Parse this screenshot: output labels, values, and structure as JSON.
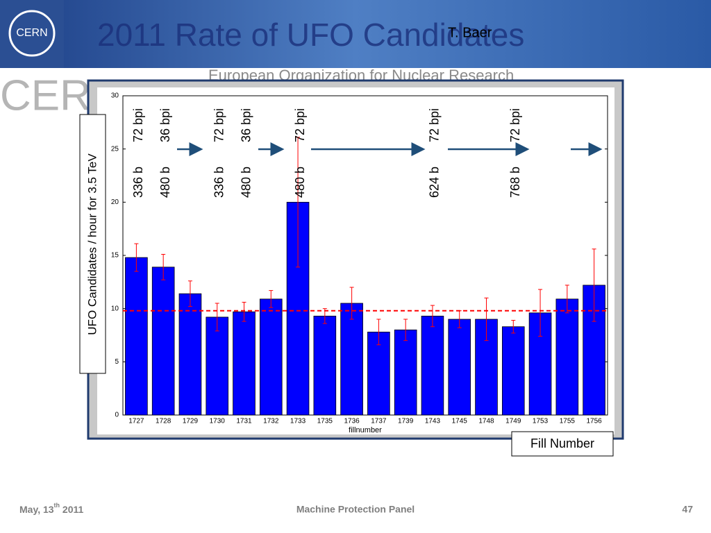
{
  "slide": {
    "title": "2011 Rate of UFO Candidates",
    "author": "T. Baer",
    "organization": "European Organization for Nuclear Research",
    "logo_text": "CERN",
    "watermark": "CER",
    "y_label_box": "UFO Candidates / hour for 3.5 TeV",
    "x_label_box": "Fill Number",
    "footer": {
      "date_before": "May, 13",
      "date_sup": "th",
      "date_after": " 2011",
      "center": "Machine Protection Panel",
      "page": "47"
    }
  },
  "chart_data": {
    "type": "bar",
    "x_label": "fillnumber",
    "categories": [
      "1727",
      "1728",
      "1729",
      "1730",
      "1731",
      "1732",
      "1733",
      "1735",
      "1736",
      "1737",
      "1739",
      "1743",
      "1745",
      "1748",
      "1749",
      "1753",
      "1755",
      "1756"
    ],
    "values": [
      14.8,
      13.9,
      11.4,
      9.2,
      9.7,
      10.9,
      20.0,
      9.3,
      10.5,
      7.8,
      8.0,
      9.3,
      9.0,
      9.0,
      8.3,
      9.6,
      10.9,
      12.2
    ],
    "errors": [
      1.3,
      1.2,
      1.2,
      1.3,
      0.9,
      0.8,
      6.1,
      0.7,
      1.5,
      1.2,
      1.0,
      1.0,
      0.8,
      2.0,
      0.6,
      2.2,
      1.3,
      3.4
    ],
    "color": "#0000ff",
    "error_color": "#ff0000",
    "reference_line": 9.8,
    "reference_color": "#ff0000",
    "ylim": [
      0,
      30
    ],
    "yticks": [
      0,
      5,
      10,
      15,
      20,
      25,
      30
    ],
    "annotations": [
      {
        "at": "1727",
        "beams": "336 b",
        "spacing": "72 bpi"
      },
      {
        "at": "1728",
        "beams": "480 b",
        "spacing": "36 bpi"
      },
      {
        "at": "1730",
        "beams": "336 b",
        "spacing": "72 bpi"
      },
      {
        "at": "1731",
        "beams": "480 b",
        "spacing": "36 bpi"
      },
      {
        "at": "1733",
        "beams": "480 b",
        "spacing": "72 bpi"
      },
      {
        "at": "1743",
        "beams": "624 b",
        "spacing": "72 bpi"
      },
      {
        "at": "1749",
        "beams": "768 b",
        "spacing": "72 bpi"
      }
    ]
  }
}
